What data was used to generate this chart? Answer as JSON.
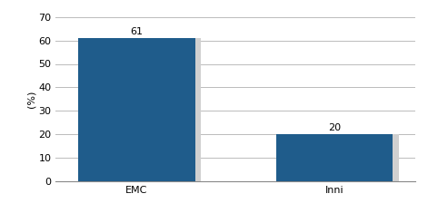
{
  "categories": [
    "EMC",
    "Inni"
  ],
  "values": [
    61,
    20
  ],
  "bar_color": "#1F5C8B",
  "bar_shadow_color": "#d0d0d0",
  "bar_width": 0.65,
  "ylabel": "(%)",
  "ylim": [
    0,
    70
  ],
  "yticks": [
    0,
    10,
    20,
    30,
    40,
    50,
    60,
    70
  ],
  "tick_fontsize": 8,
  "ylabel_fontsize": 8,
  "background_color": "#ffffff",
  "grid_color": "#bbbbbb",
  "annotation_fontsize": 8,
  "x_positions": [
    0.45,
    1.55
  ]
}
